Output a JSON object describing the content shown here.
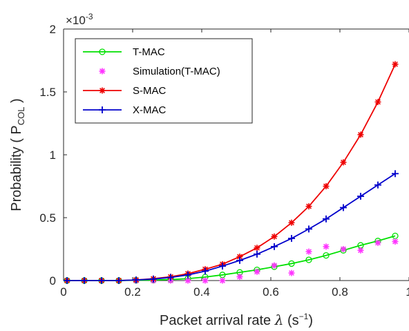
{
  "chart_data": {
    "type": "line",
    "xlabel": {
      "prefix": "Packet arrival rate ",
      "symbol": "λ",
      "unit_open": " (s",
      "unit_exp": "−1",
      "unit_close": ")"
    },
    "ylabel": {
      "prefix": "Probability ( P",
      "sub": "COL",
      "suffix": " )"
    },
    "y_exponent": {
      "base": "×10",
      "exp": "-3"
    },
    "xlim": [
      0,
      1
    ],
    "ylim": [
      0,
      2
    ],
    "x_ticks": [
      0,
      0.2,
      0.4,
      0.6,
      0.8,
      1
    ],
    "x_tick_labels": [
      "0",
      "0.2",
      "0.4",
      "0.6",
      "0.8",
      "1"
    ],
    "y_ticks": [
      0,
      0.5,
      1,
      1.5,
      2
    ],
    "y_tick_labels": [
      "0",
      "0.5",
      "1",
      "1.5",
      "2"
    ],
    "legend_position": "top-left",
    "series": [
      {
        "name": "T-MAC",
        "color": "#00e000",
        "marker": "circle",
        "line": true,
        "x": [
          0.01,
          0.06,
          0.11,
          0.16,
          0.21,
          0.26,
          0.31,
          0.36,
          0.41,
          0.46,
          0.51,
          0.56,
          0.61,
          0.66,
          0.71,
          0.76,
          0.81,
          0.86,
          0.91,
          0.96
        ],
        "y": [
          0,
          0,
          0,
          0,
          0.002,
          0.004,
          0.008,
          0.015,
          0.028,
          0.045,
          0.065,
          0.085,
          0.11,
          0.135,
          0.165,
          0.2,
          0.24,
          0.28,
          0.315,
          0.355
        ]
      },
      {
        "name": "Simulation(T-MAC)",
        "color": "#ff33ff",
        "marker": "asterisk",
        "line": false,
        "x": [
          0.01,
          0.06,
          0.11,
          0.16,
          0.21,
          0.26,
          0.31,
          0.36,
          0.41,
          0.46,
          0.51,
          0.56,
          0.61,
          0.66,
          0.71,
          0.76,
          0.81,
          0.86,
          0.91,
          0.96
        ],
        "y": [
          0,
          0,
          0,
          0,
          0,
          0,
          0,
          0,
          0,
          0,
          0.03,
          0.07,
          0.12,
          0.06,
          0.23,
          0.27,
          0.25,
          0.24,
          0.3,
          0.31
        ]
      },
      {
        "name": "S-MAC",
        "color": "#ee0000",
        "marker": "asterisk",
        "line": true,
        "x": [
          0.01,
          0.06,
          0.11,
          0.16,
          0.21,
          0.26,
          0.31,
          0.36,
          0.41,
          0.46,
          0.51,
          0.56,
          0.61,
          0.66,
          0.71,
          0.76,
          0.81,
          0.86,
          0.91,
          0.96
        ],
        "y": [
          0,
          0,
          0,
          0,
          0.005,
          0.015,
          0.03,
          0.055,
          0.09,
          0.13,
          0.19,
          0.26,
          0.35,
          0.46,
          0.59,
          0.75,
          0.94,
          1.16,
          1.42,
          1.72
        ]
      },
      {
        "name": "X-MAC",
        "color": "#0000cc",
        "marker": "plus",
        "line": true,
        "x": [
          0.01,
          0.06,
          0.11,
          0.16,
          0.21,
          0.26,
          0.31,
          0.36,
          0.41,
          0.46,
          0.51,
          0.56,
          0.61,
          0.66,
          0.71,
          0.76,
          0.81,
          0.86,
          0.91,
          0.96
        ],
        "y": [
          0,
          0,
          0,
          0,
          0.005,
          0.012,
          0.025,
          0.045,
          0.075,
          0.115,
          0.16,
          0.21,
          0.27,
          0.335,
          0.41,
          0.49,
          0.58,
          0.67,
          0.76,
          0.85
        ]
      }
    ]
  }
}
